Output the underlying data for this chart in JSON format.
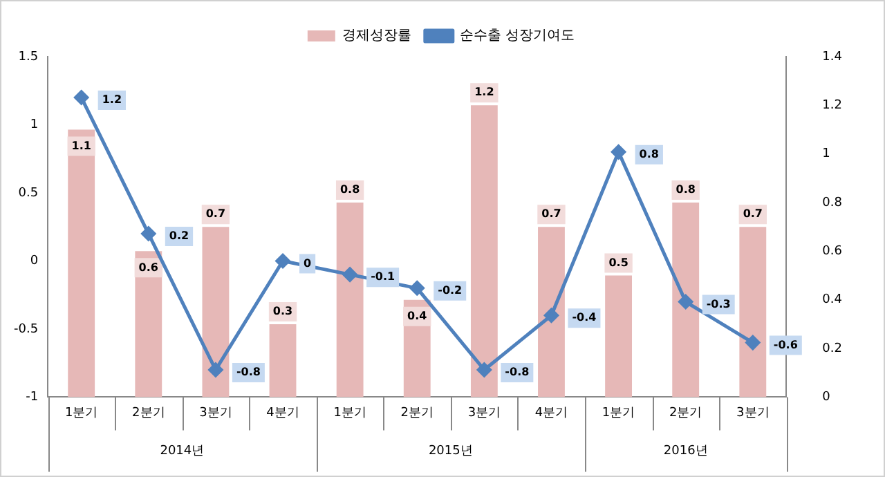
{
  "chart_data": {
    "type": "bar",
    "categories": [
      "1분기",
      "2분기",
      "3분기",
      "4분기",
      "1분기",
      "2분기",
      "3분기",
      "4분기",
      "1분기",
      "2분기",
      "3분기"
    ],
    "series": [
      {
        "name": "경제성장률",
        "type": "bar",
        "axis": "y2",
        "color": "#e6b8b7",
        "values": [
          1.1,
          0.6,
          0.7,
          0.3,
          0.8,
          0.4,
          1.2,
          0.7,
          0.5,
          0.8,
          0.7
        ]
      },
      {
        "name": "순수출 성장기여도",
        "type": "line",
        "axis": "y",
        "color": "#4f81bd",
        "values": [
          1.2,
          0.2,
          -0.8,
          0,
          -0.1,
          -0.2,
          -0.8,
          -0.4,
          0.8,
          -0.3,
          -0.6
        ]
      }
    ],
    "ylim": [
      -1,
      1.5
    ],
    "yticks": [
      -1,
      -0.5,
      0,
      0.5,
      1,
      1.5
    ],
    "y2lim": [
      0,
      1.4
    ],
    "y2ticks": [
      0,
      0.2,
      0.4,
      0.6,
      0.8,
      1,
      1.2,
      1.4
    ],
    "annotations": [
      "2014년",
      "2015년",
      "2016년"
    ],
    "data_labels": true,
    "legend": "top",
    "grid": false,
    "marker": "diamond",
    "line_style": "solid"
  }
}
